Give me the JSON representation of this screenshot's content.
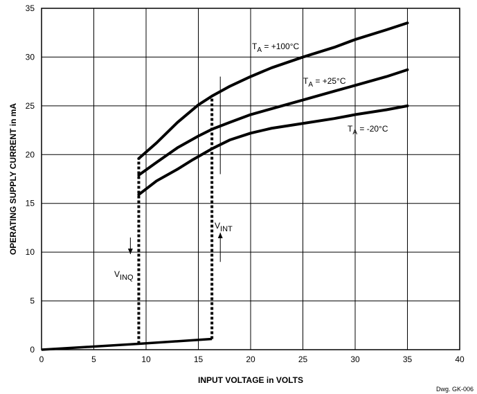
{
  "chart_data": {
    "type": "line",
    "title": "",
    "xlabel": "INPUT VOLTAGE in VOLTS",
    "ylabel": "OPERATING SUPPLY CURRENT in mA",
    "xlim": [
      0,
      40
    ],
    "ylim": [
      0,
      35
    ],
    "xticks": [
      0,
      5,
      10,
      15,
      20,
      25,
      30,
      35,
      40
    ],
    "yticks": [
      0,
      5,
      10,
      15,
      20,
      25,
      30,
      35
    ],
    "grid": true,
    "series": [
      {
        "name": "TA = +100°C",
        "label": {
          "main": "T",
          "sub": "A",
          "rest": " = +100°C"
        },
        "points": [
          [
            9.3,
            19.6
          ],
          [
            11,
            21.2
          ],
          [
            13,
            23.3
          ],
          [
            15,
            25.1
          ],
          [
            16.3,
            26
          ],
          [
            18,
            27
          ],
          [
            20,
            28
          ],
          [
            22,
            28.9
          ],
          [
            25,
            30
          ],
          [
            28,
            31
          ],
          [
            30,
            31.8
          ],
          [
            33,
            32.8
          ],
          [
            35,
            33.5
          ]
        ]
      },
      {
        "name": "TA = +25°C",
        "label": {
          "main": "T",
          "sub": "A",
          "rest": " = +25°C"
        },
        "points": [
          [
            9.3,
            17.9
          ],
          [
            11,
            19.2
          ],
          [
            13,
            20.7
          ],
          [
            15,
            21.9
          ],
          [
            16.3,
            22.6
          ],
          [
            18,
            23.3
          ],
          [
            20,
            24.1
          ],
          [
            22,
            24.7
          ],
          [
            25,
            25.6
          ],
          [
            28,
            26.5
          ],
          [
            30,
            27.1
          ],
          [
            33,
            28
          ],
          [
            35,
            28.7
          ]
        ]
      },
      {
        "name": "TA = -20°C",
        "label": {
          "main": "T",
          "sub": "A",
          "rest": " = -20°C"
        },
        "points": [
          [
            9.3,
            15.9
          ],
          [
            11,
            17.3
          ],
          [
            13,
            18.5
          ],
          [
            14.5,
            19.5
          ],
          [
            16.3,
            20.6
          ],
          [
            18,
            21.5
          ],
          [
            20,
            22.2
          ],
          [
            22,
            22.7
          ],
          [
            25,
            23.2
          ],
          [
            28,
            23.7
          ],
          [
            30,
            24.1
          ],
          [
            33,
            24.6
          ],
          [
            35,
            25
          ]
        ]
      }
    ],
    "baseline": {
      "points": [
        [
          0,
          0
        ],
        [
          9.3,
          0.6
        ],
        [
          16.3,
          1.1
        ]
      ]
    },
    "hysteresis": [
      {
        "name": "VINQ",
        "label": {
          "main": "V",
          "sub": "INQ"
        },
        "x": 9.3,
        "y_from": 0.6,
        "y_to": 19.6,
        "arrow": "down",
        "arrow_x": 8.5,
        "arrow_y": [
          11.5,
          9.8
        ]
      },
      {
        "name": "VINT",
        "label": {
          "main": "V",
          "sub": "INT"
        },
        "x": 16.3,
        "y_from": 1.1,
        "y_to": 26,
        "arrow": "up",
        "arrow_x": 17.1,
        "arrow_y": [
          9,
          12
        ]
      }
    ],
    "marker_lines": [
      {
        "x": 17.1,
        "y": [
          18,
          28
        ]
      }
    ],
    "credit": "Dwg. GK-006"
  }
}
